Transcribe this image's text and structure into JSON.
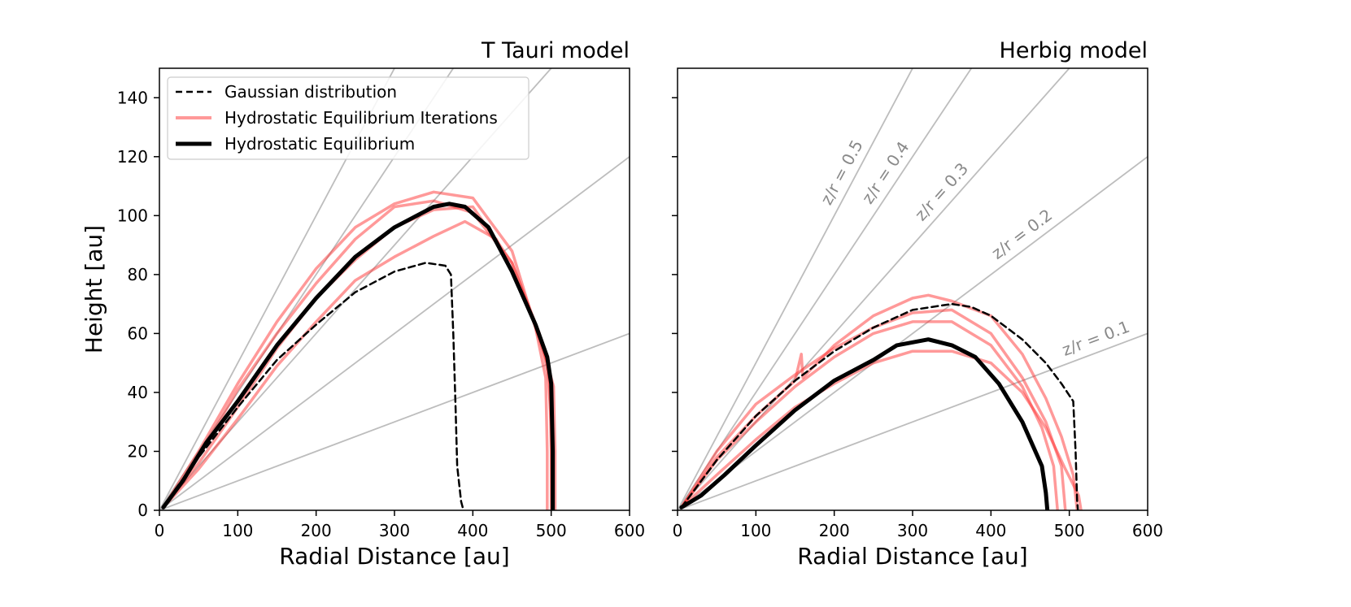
{
  "chart_data": [
    {
      "type": "line",
      "title": "T Tauri model",
      "xlabel": "Radial Distance [au]",
      "ylabel": "Height [au]",
      "xlim": [
        0,
        600
      ],
      "ylim": [
        0,
        150
      ],
      "xticks": [
        0,
        100,
        200,
        300,
        400,
        500,
        600
      ],
      "yticks": [
        0,
        20,
        40,
        60,
        80,
        100,
        120,
        140
      ],
      "show_ytick_labels": true,
      "legend": {
        "placement": "top-left",
        "entries": [
          {
            "label": "Gaussian distribution",
            "style": "dashed",
            "color": "#000000"
          },
          {
            "label": "Hydrostatic Equilibrium Iterations",
            "style": "solid",
            "color": "#ff8080"
          },
          {
            "label": "Hydrostatic Equilibrium",
            "style": "solid-thick",
            "color": "#000000"
          }
        ]
      },
      "reference_lines": [
        {
          "slope": 0.1,
          "label": ""
        },
        {
          "slope": 0.2,
          "label": ""
        },
        {
          "slope": 0.3,
          "label": ""
        },
        {
          "slope": 0.4,
          "label": ""
        },
        {
          "slope": 0.5,
          "label": ""
        }
      ],
      "series": [
        {
          "name": "Gaussian distribution",
          "role": "gaussian",
          "points": [
            [
              5,
              1
            ],
            [
              20,
              7
            ],
            [
              50,
              18
            ],
            [
              100,
              35
            ],
            [
              150,
              51
            ],
            [
              200,
              63
            ],
            [
              250,
              74
            ],
            [
              300,
              81
            ],
            [
              340,
              84
            ],
            [
              365,
              83
            ],
            [
              372,
              80
            ],
            [
              375,
              60
            ],
            [
              378,
              35
            ],
            [
              380,
              15
            ],
            [
              385,
              3
            ],
            [
              388,
              0
            ]
          ]
        },
        {
          "name": "Hydrostatic Equilibrium Iterations",
          "role": "iteration",
          "points": [
            [
              5,
              1
            ],
            [
              50,
              20
            ],
            [
              100,
              43
            ],
            [
              150,
              64
            ],
            [
              200,
              82
            ],
            [
              250,
              96
            ],
            [
              300,
              104
            ],
            [
              350,
              108
            ],
            [
              400,
              106
            ],
            [
              450,
              88
            ],
            [
              480,
              62
            ],
            [
              493,
              45
            ],
            [
              495,
              20
            ],
            [
              495,
              0
            ]
          ]
        },
        {
          "name": "Hydrostatic Equilibrium Iterations",
          "role": "iteration",
          "points": [
            [
              5,
              1
            ],
            [
              50,
              18
            ],
            [
              100,
              41
            ],
            [
              150,
              60
            ],
            [
              200,
              77
            ],
            [
              250,
              92
            ],
            [
              300,
              103
            ],
            [
              350,
              105
            ],
            [
              400,
              101
            ],
            [
              450,
              84
            ],
            [
              485,
              60
            ],
            [
              498,
              44
            ],
            [
              500,
              20
            ],
            [
              500,
              0
            ]
          ]
        },
        {
          "name": "Hydrostatic Equilibrium Iterations",
          "role": "iteration",
          "points": [
            [
              5,
              1
            ],
            [
              50,
              16
            ],
            [
              100,
              35
            ],
            [
              150,
              55
            ],
            [
              200,
              72
            ],
            [
              250,
              85
            ],
            [
              300,
              96
            ],
            [
              350,
              102
            ],
            [
              400,
              103
            ],
            [
              450,
              84
            ],
            [
              490,
              55
            ],
            [
              503,
              42
            ],
            [
              505,
              20
            ],
            [
              505,
              0
            ]
          ]
        },
        {
          "name": "Hydrostatic Equilibrium Iterations",
          "role": "iteration",
          "points": [
            [
              5,
              1
            ],
            [
              50,
              14
            ],
            [
              100,
              31
            ],
            [
              150,
              49
            ],
            [
              200,
              64
            ],
            [
              250,
              78
            ],
            [
              300,
              86
            ],
            [
              350,
              93
            ],
            [
              390,
              98
            ],
            [
              430,
              92
            ],
            [
              470,
              70
            ],
            [
              495,
              50
            ],
            [
              500,
              30
            ],
            [
              501,
              0
            ]
          ]
        },
        {
          "name": "Hydrostatic Equilibrium",
          "role": "final",
          "points": [
            [
              5,
              1
            ],
            [
              30,
              10
            ],
            [
              60,
              23
            ],
            [
              100,
              37
            ],
            [
              150,
              56
            ],
            [
              200,
              72
            ],
            [
              250,
              86
            ],
            [
              300,
              96
            ],
            [
              350,
              103
            ],
            [
              370,
              104
            ],
            [
              390,
              103
            ],
            [
              420,
              96
            ],
            [
              450,
              81
            ],
            [
              480,
              63
            ],
            [
              495,
              52
            ],
            [
              500,
              43
            ],
            [
              502,
              20
            ],
            [
              502,
              0
            ]
          ]
        }
      ]
    },
    {
      "type": "line",
      "title": "Herbig model",
      "xlabel": "Radial Distance [au]",
      "ylabel": "",
      "xlim": [
        0,
        600
      ],
      "ylim": [
        0,
        150
      ],
      "xticks": [
        0,
        100,
        200,
        300,
        400,
        500,
        600
      ],
      "yticks": [
        0,
        20,
        40,
        60,
        80,
        100,
        120,
        140
      ],
      "show_ytick_labels": false,
      "reference_lines": [
        {
          "slope": 0.1,
          "label": "z/r = 0.1",
          "label_at_x": 540
        },
        {
          "slope": 0.2,
          "label": "z/r = 0.2",
          "label_at_x": 450
        },
        {
          "slope": 0.3,
          "label": "z/r = 0.3",
          "label_at_x": 350
        },
        {
          "slope": 0.4,
          "label": "z/r = 0.4",
          "label_at_x": 280
        },
        {
          "slope": 0.5,
          "label": "z/r = 0.5",
          "label_at_x": 225
        }
      ],
      "series": [
        {
          "name": "Gaussian distribution",
          "role": "gaussian",
          "points": [
            [
              5,
              1
            ],
            [
              50,
              17
            ],
            [
              100,
              32
            ],
            [
              150,
              44
            ],
            [
              200,
              54
            ],
            [
              250,
              62
            ],
            [
              300,
              68
            ],
            [
              350,
              70
            ],
            [
              375,
              69
            ],
            [
              400,
              66
            ],
            [
              440,
              58
            ],
            [
              470,
              50
            ],
            [
              490,
              43
            ],
            [
              505,
              37
            ],
            [
              508,
              20
            ],
            [
              510,
              3
            ],
            [
              511,
              0
            ]
          ]
        },
        {
          "name": "Hydrostatic Equilibrium Iterations",
          "role": "iteration",
          "points": [
            [
              5,
              1
            ],
            [
              50,
              18
            ],
            [
              100,
              32
            ],
            [
              150,
              44
            ],
            [
              158,
              53
            ],
            [
              160,
              45
            ],
            [
              200,
              56
            ],
            [
              250,
              66
            ],
            [
              300,
              72
            ],
            [
              320,
              73
            ],
            [
              350,
              71
            ],
            [
              400,
              66
            ],
            [
              440,
              53
            ],
            [
              470,
              38
            ],
            [
              490,
              25
            ],
            [
              505,
              12
            ],
            [
              510,
              0
            ]
          ]
        },
        {
          "name": "Hydrostatic Equilibrium Iterations",
          "role": "iteration",
          "points": [
            [
              5,
              1
            ],
            [
              50,
              20
            ],
            [
              100,
              36
            ],
            [
              150,
              46
            ],
            [
              200,
              55
            ],
            [
              250,
              62
            ],
            [
              300,
              67
            ],
            [
              350,
              68
            ],
            [
              400,
              60
            ],
            [
              440,
              45
            ],
            [
              470,
              30
            ],
            [
              490,
              15
            ],
            [
              495,
              0
            ]
          ]
        },
        {
          "name": "Hydrostatic Equilibrium Iterations",
          "role": "iteration",
          "points": [
            [
              5,
              1
            ],
            [
              50,
              17
            ],
            [
              100,
              30
            ],
            [
              150,
              42
            ],
            [
              200,
              52
            ],
            [
              250,
              60
            ],
            [
              300,
              64
            ],
            [
              350,
              64
            ],
            [
              400,
              56
            ],
            [
              440,
              42
            ],
            [
              465,
              28
            ],
            [
              480,
              15
            ],
            [
              485,
              0
            ]
          ]
        },
        {
          "name": "Hydrostatic Equilibrium Iterations",
          "role": "iteration",
          "points": [
            [
              5,
              1
            ],
            [
              50,
              12
            ],
            [
              100,
              24
            ],
            [
              150,
              35
            ],
            [
              200,
              43
            ],
            [
              250,
              50
            ],
            [
              300,
              54
            ],
            [
              350,
              54
            ],
            [
              400,
              50
            ],
            [
              440,
              40
            ],
            [
              470,
              28
            ],
            [
              495,
              14
            ],
            [
              512,
              5
            ],
            [
              515,
              0
            ]
          ]
        },
        {
          "name": "Hydrostatic Equilibrium",
          "role": "final",
          "points": [
            [
              5,
              1
            ],
            [
              30,
              5
            ],
            [
              60,
              12
            ],
            [
              100,
              22
            ],
            [
              150,
              34
            ],
            [
              200,
              44
            ],
            [
              250,
              51
            ],
            [
              280,
              56
            ],
            [
              320,
              58
            ],
            [
              350,
              56
            ],
            [
              380,
              52
            ],
            [
              410,
              43
            ],
            [
              440,
              30
            ],
            [
              465,
              15
            ],
            [
              470,
              6
            ],
            [
              472,
              0
            ]
          ]
        }
      ]
    }
  ]
}
